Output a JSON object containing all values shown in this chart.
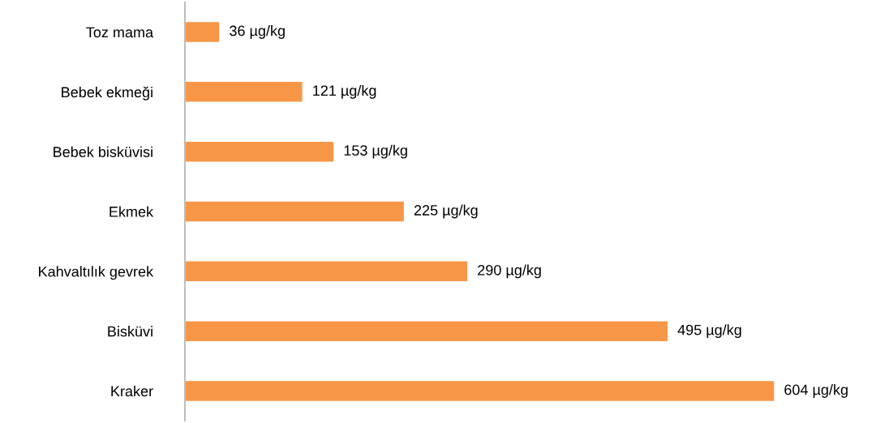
{
  "chart_data": {
    "type": "bar",
    "orientation": "horizontal",
    "categories": [
      "Toz mama",
      "Bebek ekmeği",
      "Bebek bisküvisi",
      "Ekmek",
      "Kahvaltılık gevrek",
      "Bisküvi",
      "Kraker"
    ],
    "values": [
      36,
      121,
      153,
      225,
      290,
      495,
      604
    ],
    "value_labels": [
      "36 µg/kg",
      "121 µg/kg",
      "153 µg/kg",
      "225 µg/kg",
      "290 µg/kg",
      "495 µg/kg",
      "604 µg/kg"
    ],
    "color": "#f79646",
    "grid": false,
    "legend": false
  }
}
